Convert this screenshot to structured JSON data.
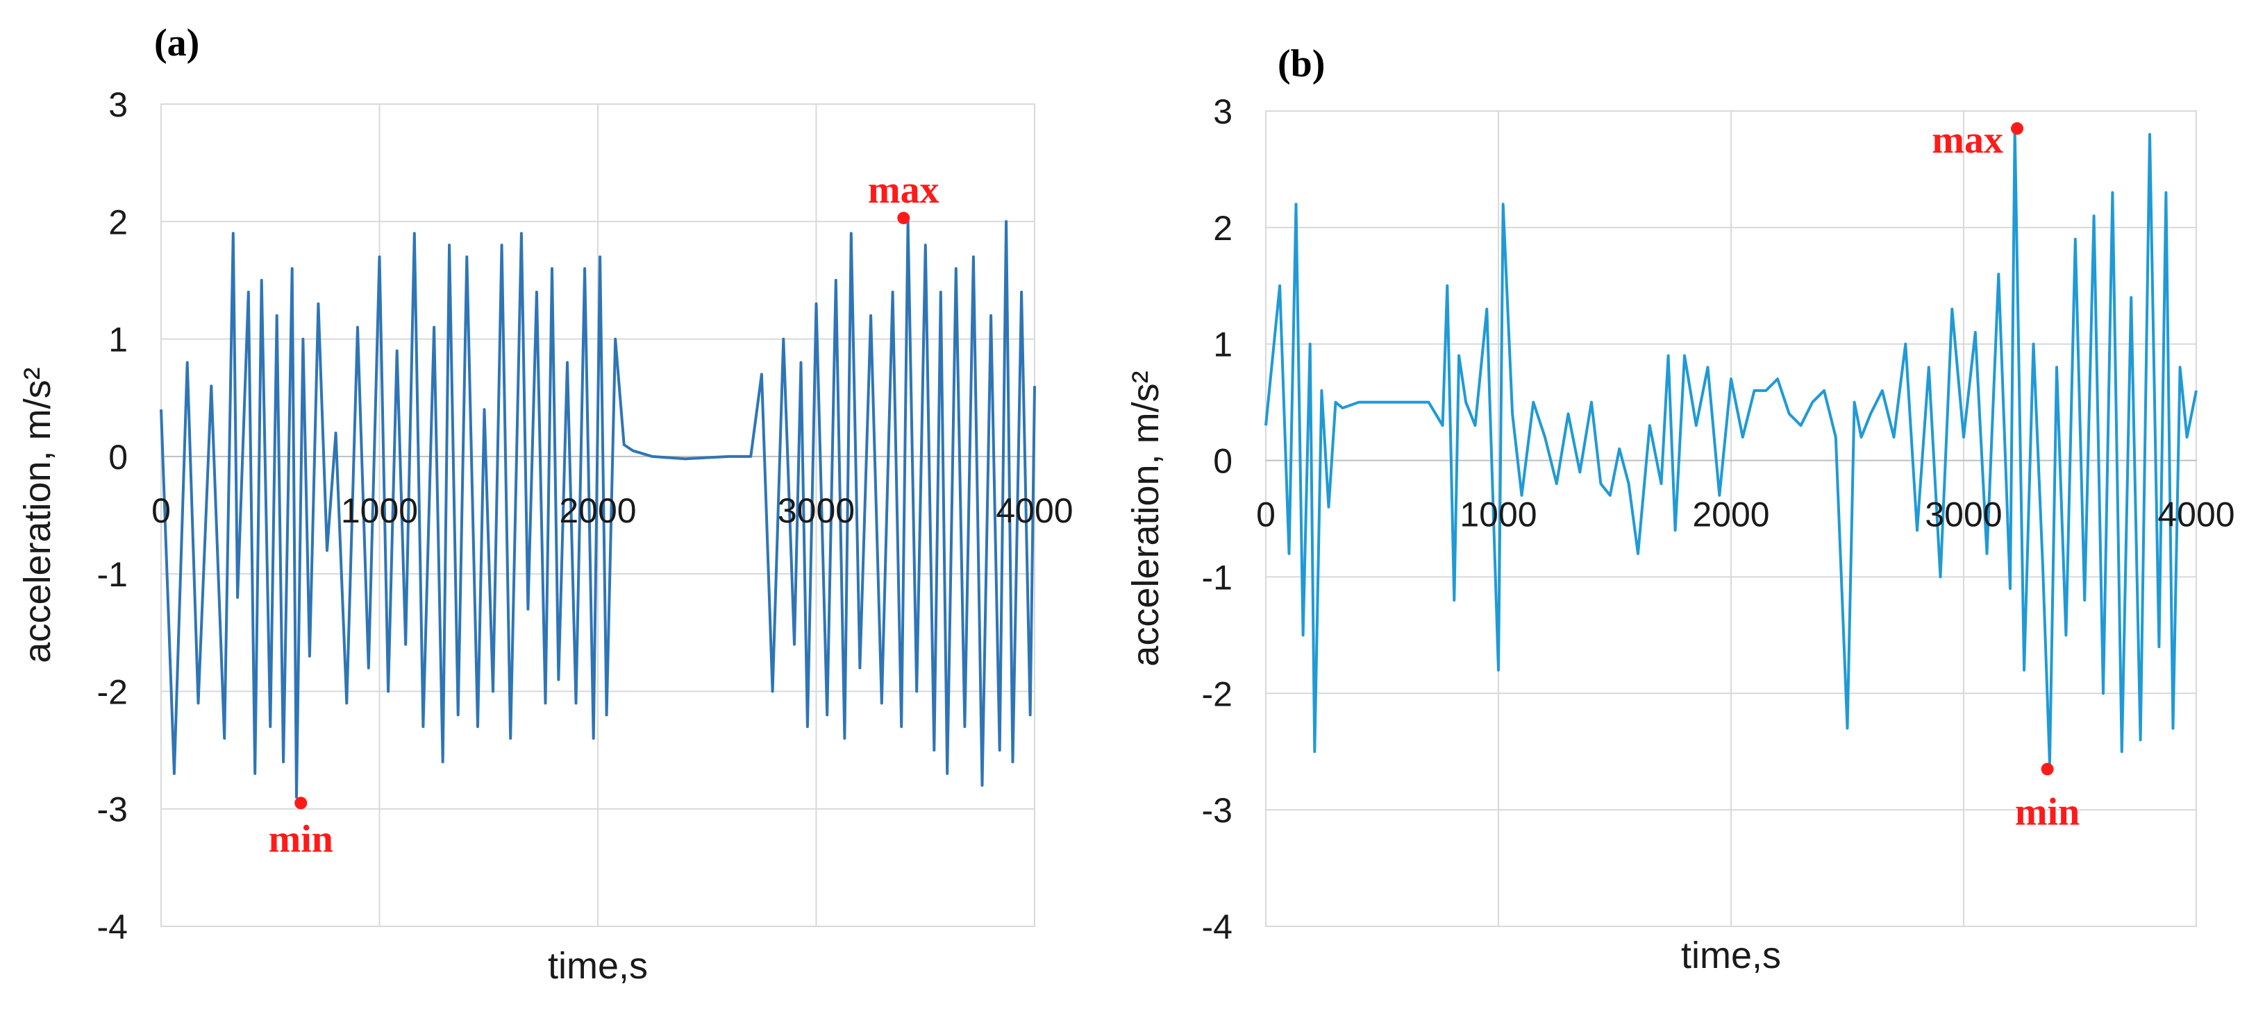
{
  "chart_data": [
    {
      "type": "line",
      "panel_label": "(a)",
      "xlabel": "time,s",
      "ylabel": "acceleration, m/s²",
      "xlim": [
        0,
        4000
      ],
      "ylim": [
        -4,
        3
      ],
      "xticks": [
        "0",
        "1000",
        "2000",
        "3000",
        "4000"
      ],
      "yticks": [
        "3",
        "2",
        "1",
        "0",
        "-1",
        "-2",
        "-3",
        "-4"
      ],
      "grid": true,
      "color": "#2e75b6",
      "series": [
        {
          "name": "acceleration",
          "x": [
            0,
            60,
            120,
            170,
            230,
            290,
            330,
            350,
            400,
            430,
            460,
            500,
            530,
            560,
            600,
            620,
            650,
            680,
            720,
            760,
            800,
            850,
            900,
            950,
            1000,
            1040,
            1080,
            1120,
            1160,
            1200,
            1250,
            1290,
            1320,
            1360,
            1400,
            1450,
            1480,
            1520,
            1560,
            1600,
            1650,
            1680,
            1720,
            1760,
            1790,
            1820,
            1860,
            1900,
            1940,
            1980,
            2010,
            2040,
            2080,
            2120,
            2160,
            2250,
            2400,
            2600,
            2700,
            2750,
            2800,
            2850,
            2900,
            2930,
            2960,
            3000,
            3050,
            3090,
            3130,
            3160,
            3200,
            3250,
            3300,
            3350,
            3390,
            3420,
            3460,
            3500,
            3540,
            3570,
            3600,
            3640,
            3680,
            3720,
            3760,
            3800,
            3840,
            3870,
            3900,
            3940,
            3980,
            4000
          ],
          "values": [
            0.4,
            -2.7,
            0.8,
            -2.1,
            0.6,
            -2.4,
            1.9,
            -1.2,
            1.4,
            -2.7,
            1.5,
            -2.3,
            1.2,
            -2.6,
            1.6,
            -2.9,
            1.0,
            -1.7,
            1.3,
            -0.8,
            0.2,
            -2.1,
            1.1,
            -1.8,
            1.7,
            -2.0,
            0.9,
            -1.6,
            1.9,
            -2.3,
            1.1,
            -2.6,
            1.8,
            -2.2,
            1.7,
            -2.3,
            0.4,
            -2.0,
            1.8,
            -2.4,
            1.9,
            -1.3,
            1.4,
            -2.1,
            1.6,
            -1.9,
            0.8,
            -2.1,
            1.6,
            -2.4,
            1.7,
            -2.2,
            1.0,
            0.1,
            0.05,
            0.0,
            -0.02,
            0.0,
            0.0,
            0.7,
            -2.0,
            1.0,
            -1.6,
            0.8,
            -2.3,
            1.3,
            -2.2,
            1.5,
            -2.4,
            1.9,
            -1.8,
            1.2,
            -2.1,
            1.4,
            -2.3,
            2.0,
            -2.0,
            1.8,
            -2.5,
            1.4,
            -2.7,
            1.6,
            -2.3,
            1.7,
            -2.8,
            1.2,
            -2.5,
            2.0,
            -2.6,
            1.4,
            -2.2,
            0.6
          ]
        }
      ],
      "annotations": [
        {
          "text": "max",
          "x": 3400,
          "y": 2.03
        },
        {
          "text": "min",
          "x": 640,
          "y": -2.95
        }
      ]
    },
    {
      "type": "line",
      "panel_label": "(b)",
      "xlabel": "time,s",
      "ylabel": "acceleration, m/s²",
      "xlim": [
        0,
        4000
      ],
      "ylim": [
        -4,
        3
      ],
      "xticks": [
        "0",
        "1000",
        "2000",
        "3000",
        "4000"
      ],
      "yticks": [
        "3",
        "2",
        "1",
        "0",
        "-1",
        "-2",
        "-3",
        "-4"
      ],
      "grid": true,
      "color": "#1f9ad6",
      "series": [
        {
          "name": "acceleration",
          "x": [
            0,
            60,
            100,
            130,
            160,
            190,
            210,
            240,
            270,
            300,
            330,
            400,
            500,
            600,
            700,
            760,
            780,
            810,
            830,
            860,
            900,
            950,
            1000,
            1020,
            1060,
            1100,
            1150,
            1200,
            1250,
            1300,
            1350,
            1400,
            1440,
            1480,
            1520,
            1560,
            1600,
            1650,
            1700,
            1730,
            1760,
            1800,
            1850,
            1900,
            1950,
            2000,
            2050,
            2100,
            2150,
            2200,
            2250,
            2300,
            2350,
            2400,
            2450,
            2500,
            2530,
            2560,
            2600,
            2650,
            2700,
            2750,
            2800,
            2850,
            2900,
            2950,
            3000,
            3050,
            3100,
            3150,
            3200,
            3220,
            3260,
            3300,
            3340,
            3370,
            3400,
            3440,
            3480,
            3520,
            3560,
            3600,
            3640,
            3680,
            3720,
            3760,
            3800,
            3840,
            3870,
            3900,
            3930,
            3960,
            4000
          ],
          "values": [
            0.3,
            1.5,
            -0.8,
            2.2,
            -1.5,
            1.0,
            -2.5,
            0.6,
            -0.4,
            0.5,
            0.45,
            0.5,
            0.5,
            0.5,
            0.5,
            0.3,
            1.5,
            -1.2,
            0.9,
            0.5,
            0.3,
            1.3,
            -1.8,
            2.2,
            0.4,
            -0.3,
            0.5,
            0.2,
            -0.2,
            0.4,
            -0.1,
            0.5,
            -0.2,
            -0.3,
            0.1,
            -0.2,
            -0.8,
            0.3,
            -0.2,
            0.9,
            -0.6,
            0.9,
            0.3,
            0.8,
            -0.3,
            0.7,
            0.2,
            0.6,
            0.6,
            0.7,
            0.4,
            0.3,
            0.5,
            0.6,
            0.2,
            -2.3,
            0.5,
            0.2,
            0.4,
            0.6,
            0.2,
            1.0,
            -0.6,
            0.8,
            -1.0,
            1.3,
            0.2,
            1.1,
            -0.8,
            1.6,
            -1.1,
            2.85,
            -1.8,
            1.0,
            -0.9,
            -2.6,
            0.8,
            -1.5,
            1.9,
            -1.2,
            2.1,
            -2.0,
            2.3,
            -2.5,
            1.4,
            -2.4,
            2.8,
            -1.6,
            2.3,
            -2.3,
            0.8,
            0.2,
            0.6
          ]
        }
      ],
      "annotations": [
        {
          "text": "max",
          "x": 3230,
          "y": 2.85
        },
        {
          "text": "min",
          "x": 3360,
          "y": -2.65
        }
      ]
    }
  ]
}
